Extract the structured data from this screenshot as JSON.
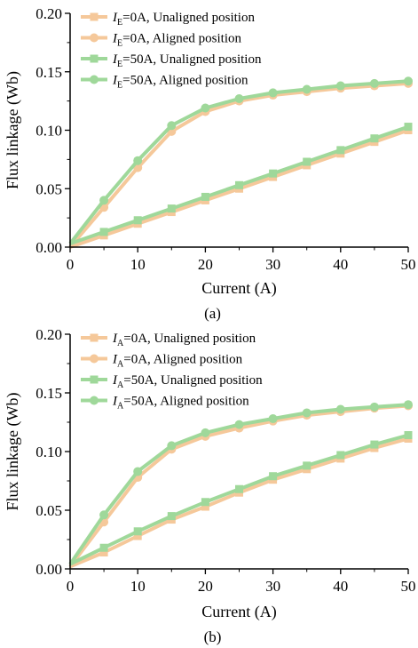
{
  "chart_data": [
    {
      "type": "line",
      "panel_label": "(a)",
      "xlabel": "Current (A)",
      "ylabel": "Flux linkage (Wb)",
      "xlim": [
        0,
        50
      ],
      "ylim": [
        0,
        0.2
      ],
      "xticks": [
        "0",
        "10",
        "20",
        "30",
        "40",
        "50"
      ],
      "yticks": [
        "0.00",
        "0.05",
        "0.10",
        "0.15",
        "0.20"
      ],
      "grid": false,
      "legend_position": "top-left",
      "x": [
        0,
        5,
        10,
        15,
        20,
        25,
        30,
        35,
        40,
        45,
        50
      ],
      "series": [
        {
          "name": "I_E=0A, Unaligned position",
          "sym": "I",
          "sub": "E",
          "rest": "=0A, Unaligned position",
          "marker": "square",
          "color": "#f5c89a",
          "values": [
            0.0,
            0.01,
            0.02,
            0.03,
            0.04,
            0.05,
            0.06,
            0.07,
            0.08,
            0.09,
            0.1
          ]
        },
        {
          "name": "I_E=0A, Aligned position",
          "sym": "I",
          "sub": "E",
          "rest": "=0A, Aligned position",
          "marker": "circle",
          "color": "#f5c89a",
          "values": [
            0.0,
            0.034,
            0.068,
            0.099,
            0.116,
            0.125,
            0.13,
            0.133,
            0.136,
            0.138,
            0.14
          ]
        },
        {
          "name": "I_E=50A, Unaligned position",
          "sym": "I",
          "sub": "E",
          "rest": "=50A, Unaligned position",
          "marker": "square",
          "color": "#9fd89a",
          "values": [
            0.003,
            0.013,
            0.023,
            0.033,
            0.043,
            0.053,
            0.063,
            0.073,
            0.083,
            0.093,
            0.103
          ]
        },
        {
          "name": "I_E=50A, Aligned position",
          "sym": "I",
          "sub": "E",
          "rest": "=50A, Aligned position",
          "marker": "circle",
          "color": "#9fd89a",
          "values": [
            0.003,
            0.04,
            0.074,
            0.104,
            0.119,
            0.127,
            0.132,
            0.135,
            0.138,
            0.14,
            0.142
          ]
        }
      ]
    },
    {
      "type": "line",
      "panel_label": "(b)",
      "xlabel": "Current (A)",
      "ylabel": "Flux linkage (Wb)",
      "xlim": [
        0,
        50
      ],
      "ylim": [
        0,
        0.2
      ],
      "xticks": [
        "0",
        "10",
        "20",
        "30",
        "40",
        "50"
      ],
      "yticks": [
        "0.00",
        "0.05",
        "0.10",
        "0.15",
        "0.20"
      ],
      "grid": false,
      "legend_position": "top-left",
      "x": [
        0,
        5,
        10,
        15,
        20,
        25,
        30,
        35,
        40,
        45,
        50
      ],
      "series": [
        {
          "name": "I_A=0A, Unaligned position",
          "sym": "I",
          "sub": "A",
          "rest": "=0A, Unaligned position",
          "marker": "square",
          "color": "#f5c89a",
          "values": [
            0.002,
            0.014,
            0.028,
            0.042,
            0.053,
            0.065,
            0.076,
            0.085,
            0.094,
            0.103,
            0.111
          ]
        },
        {
          "name": "I_A=0A, Aligned position",
          "sym": "I",
          "sub": "A",
          "rest": "=0A, Aligned position",
          "marker": "circle",
          "color": "#f5c89a",
          "values": [
            0.002,
            0.04,
            0.078,
            0.102,
            0.113,
            0.12,
            0.126,
            0.131,
            0.134,
            0.137,
            0.139
          ]
        },
        {
          "name": "I_A=50A, Unaligned position",
          "sym": "I",
          "sub": "A",
          "rest": "=50A, Unaligned position",
          "marker": "square",
          "color": "#9fd89a",
          "values": [
            0.004,
            0.018,
            0.032,
            0.045,
            0.057,
            0.068,
            0.079,
            0.088,
            0.097,
            0.106,
            0.114
          ]
        },
        {
          "name": "I_A=50A, Aligned position",
          "sym": "I",
          "sub": "A",
          "rest": "=50A, Aligned position",
          "marker": "circle",
          "color": "#9fd89a",
          "values": [
            0.004,
            0.046,
            0.083,
            0.105,
            0.116,
            0.123,
            0.128,
            0.133,
            0.136,
            0.138,
            0.14
          ]
        }
      ]
    }
  ]
}
